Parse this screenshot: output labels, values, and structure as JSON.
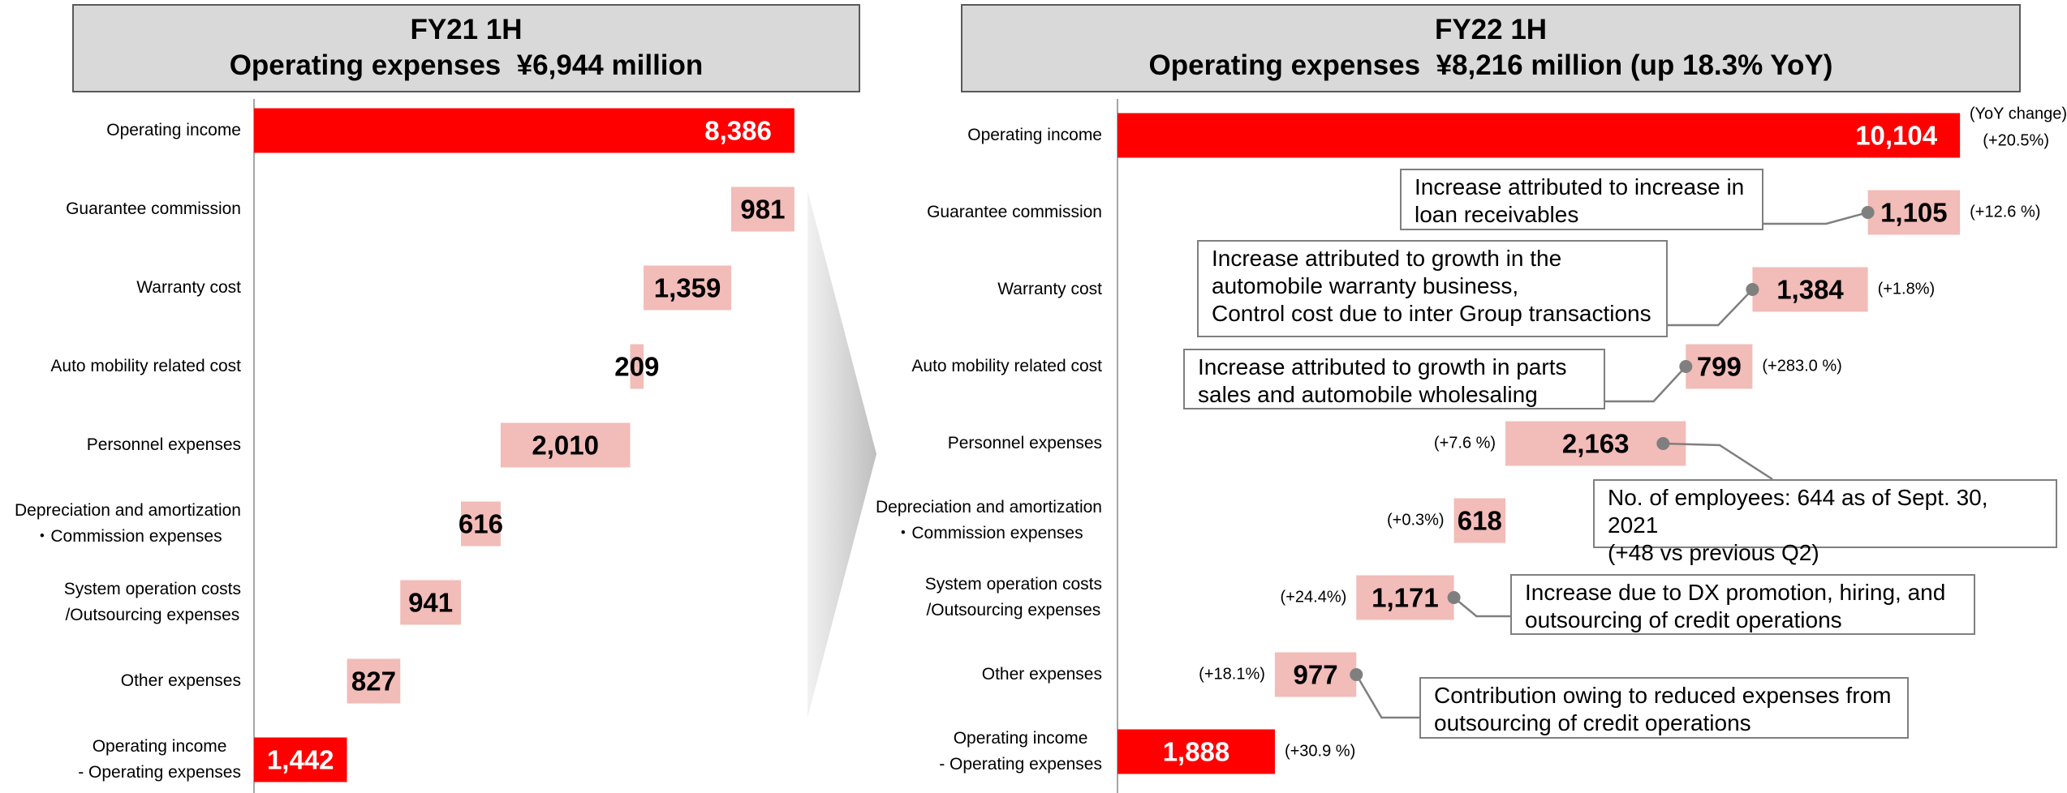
{
  "chart_data": [
    {
      "type": "waterfall",
      "title": "FY21 1H",
      "subtitle": "Operating expenses  ¥6,944 million",
      "categories": [
        "Operating income",
        "Guarantee commission",
        "Warranty cost",
        "Auto mobility related cost",
        "Personnel expenses",
        "Depreciation and amortization\n・Commission expenses",
        "System operation costs\n/Outsourcing expenses",
        "Other expenses",
        "Operating income\n- Operating expenses"
      ],
      "measures": [
        "total",
        "relative",
        "relative",
        "relative",
        "relative",
        "relative",
        "relative",
        "relative",
        "total"
      ],
      "values": [
        8386,
        981,
        1359,
        209,
        2010,
        616,
        941,
        827,
        1442
      ],
      "value_labels": [
        "8,386",
        "981",
        "1,359",
        "209",
        "2,010",
        "616",
        "941",
        "827",
        "1,442"
      ],
      "total_color": "#ff0000",
      "relative_color": "#f2bcb8",
      "xlim": [
        0,
        8400
      ]
    },
    {
      "type": "waterfall",
      "title": "FY22 1H",
      "subtitle": "Operating expenses  ¥8,216 million (up 18.3% YoY)",
      "categories": [
        "Operating income",
        "Guarantee commission",
        "Warranty cost",
        "Auto mobility related cost",
        "Personnel expenses",
        "Depreciation and amortization\n・Commission expenses",
        "System operation costs\n/Outsourcing expenses",
        "Other expenses",
        "Operating income\n- Operating expenses"
      ],
      "measures": [
        "total",
        "relative",
        "relative",
        "relative",
        "relative",
        "relative",
        "relative",
        "relative",
        "total"
      ],
      "values": [
        10104,
        1105,
        1384,
        799,
        2163,
        618,
        1171,
        977,
        1888
      ],
      "value_labels": [
        "10,104",
        "1,105",
        "1,384",
        "799",
        "2,163",
        "618",
        "1,171",
        "977",
        "1,888"
      ],
      "change_header": "(YoY change)",
      "changes": [
        "(+20.5%)",
        "(+12.6 %)",
        "(+1.8%)",
        "(+283.0 %)",
        "(+7.6 %)",
        "(+0.3%)",
        "(+24.4%)",
        "(+18.1%)",
        "(+30.9 %)"
      ],
      "annotations": [
        "Increase attributed to increase in\nloan receivables",
        "Increase attributed to growth in the\nautomobile warranty business,\nControl cost due to inter Group transactions",
        "Increase attributed to growth in parts\nsales and automobile wholesaling",
        "No. of employees: 644 as of Sept. 30, 2021\n(+48 vs previous Q2)",
        "Increase due to DX promotion, hiring, and\noutsourcing of credit operations",
        "Contribution owing to reduced expenses from\noutsourcing of credit operations"
      ],
      "total_color": "#ff0000",
      "relative_color": "#f2bcb8",
      "xlim": [
        0,
        10200
      ]
    }
  ]
}
